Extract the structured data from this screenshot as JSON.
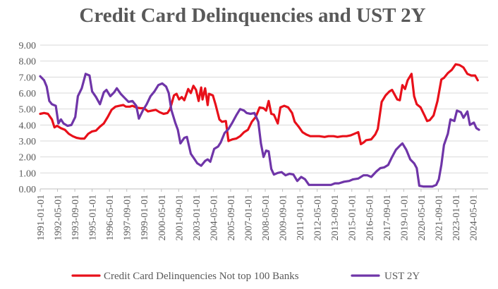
{
  "chart_data": {
    "type": "line",
    "title": "Credit Card Delinquencies and UST 2Y",
    "xlabel": "",
    "ylabel": "",
    "ylim": [
      0,
      9
    ],
    "y_ticks": [
      "0.00",
      "1.00",
      "2.00",
      "3.00",
      "4.00",
      "5.00",
      "6.00",
      "7.00",
      "8.00",
      "9.00"
    ],
    "x_tick_labels": [
      "1991-01-01",
      "1992-05-01",
      "1993-09-01",
      "1995-01-01",
      "1996-05-01",
      "1997-09-01",
      "1999-01-01",
      "2000-05-01",
      "2001-09-01",
      "2003-01-01",
      "2004-05-01",
      "2005-09-01",
      "2007-01-01",
      "2008-05-01",
      "2009-09-01",
      "2011-01-01",
      "2012-05-01",
      "2013-09-01",
      "2015-01-01",
      "2016-05-01",
      "2017-09-01",
      "2019-01-01",
      "2020-05-01",
      "2021-09-01",
      "2023-01-01",
      "2024-05-01"
    ],
    "x_range": [
      1991.0,
      2025.5
    ],
    "grid": "horizontal",
    "legend_position": "bottom",
    "series": [
      {
        "name": "Credit Card Delinquencies Not top 100 Banks",
        "color": "#e8101a",
        "points": [
          [
            1991.0,
            4.7
          ],
          [
            1991.3,
            4.75
          ],
          [
            1991.6,
            4.7
          ],
          [
            1991.9,
            4.35
          ],
          [
            1992.1,
            3.85
          ],
          [
            1992.3,
            3.95
          ],
          [
            1992.6,
            3.8
          ],
          [
            1992.9,
            3.7
          ],
          [
            1993.2,
            3.45
          ],
          [
            1993.5,
            3.3
          ],
          [
            1993.8,
            3.2
          ],
          [
            1994.1,
            3.15
          ],
          [
            1994.4,
            3.15
          ],
          [
            1994.7,
            3.45
          ],
          [
            1995.0,
            3.6
          ],
          [
            1995.3,
            3.65
          ],
          [
            1995.6,
            3.9
          ],
          [
            1995.9,
            4.1
          ],
          [
            1996.2,
            4.5
          ],
          [
            1996.5,
            4.95
          ],
          [
            1996.8,
            5.15
          ],
          [
            1997.1,
            5.2
          ],
          [
            1997.4,
            5.25
          ],
          [
            1997.6,
            5.15
          ],
          [
            1997.9,
            5.15
          ],
          [
            1998.1,
            5.2
          ],
          [
            1998.4,
            5.1
          ],
          [
            1998.7,
            5.05
          ],
          [
            1999.0,
            5.05
          ],
          [
            1999.3,
            4.85
          ],
          [
            1999.6,
            4.9
          ],
          [
            1999.9,
            4.95
          ],
          [
            2000.2,
            4.8
          ],
          [
            2000.5,
            4.7
          ],
          [
            2000.8,
            4.75
          ],
          [
            2001.0,
            5.0
          ],
          [
            2001.3,
            5.85
          ],
          [
            2001.5,
            5.95
          ],
          [
            2001.7,
            5.6
          ],
          [
            2001.9,
            5.75
          ],
          [
            2002.1,
            5.55
          ],
          [
            2002.4,
            6.25
          ],
          [
            2002.6,
            6.0
          ],
          [
            2002.8,
            6.45
          ],
          [
            2003.0,
            6.2
          ],
          [
            2003.2,
            5.5
          ],
          [
            2003.4,
            6.35
          ],
          [
            2003.5,
            5.6
          ],
          [
            2003.7,
            6.3
          ],
          [
            2003.9,
            5.25
          ],
          [
            2004.0,
            5.95
          ],
          [
            2004.3,
            5.85
          ],
          [
            2004.5,
            5.3
          ],
          [
            2004.8,
            4.35
          ],
          [
            2005.0,
            4.2
          ],
          [
            2005.3,
            4.25
          ],
          [
            2005.5,
            3.0
          ],
          [
            2005.8,
            3.1
          ],
          [
            2006.1,
            3.15
          ],
          [
            2006.4,
            3.3
          ],
          [
            2006.7,
            3.55
          ],
          [
            2007.0,
            3.7
          ],
          [
            2007.3,
            4.2
          ],
          [
            2007.6,
            4.5
          ],
          [
            2007.9,
            5.1
          ],
          [
            2008.2,
            5.05
          ],
          [
            2008.4,
            4.9
          ],
          [
            2008.6,
            5.5
          ],
          [
            2008.8,
            4.7
          ],
          [
            2009.0,
            4.65
          ],
          [
            2009.3,
            4.1
          ],
          [
            2009.5,
            5.1
          ],
          [
            2009.8,
            5.2
          ],
          [
            2010.1,
            5.1
          ],
          [
            2010.4,
            4.75
          ],
          [
            2010.6,
            4.2
          ],
          [
            2010.9,
            3.9
          ],
          [
            2011.2,
            3.55
          ],
          [
            2011.5,
            3.4
          ],
          [
            2011.8,
            3.3
          ],
          [
            2012.1,
            3.3
          ],
          [
            2012.5,
            3.3
          ],
          [
            2012.9,
            3.25
          ],
          [
            2013.2,
            3.3
          ],
          [
            2013.6,
            3.3
          ],
          [
            2013.9,
            3.25
          ],
          [
            2014.3,
            3.3
          ],
          [
            2014.6,
            3.3
          ],
          [
            2014.9,
            3.35
          ],
          [
            2015.2,
            3.45
          ],
          [
            2015.5,
            3.55
          ],
          [
            2015.7,
            2.8
          ],
          [
            2015.9,
            2.9
          ],
          [
            2016.1,
            3.05
          ],
          [
            2016.5,
            3.1
          ],
          [
            2016.8,
            3.4
          ],
          [
            2017.0,
            3.75
          ],
          [
            2017.3,
            5.45
          ],
          [
            2017.6,
            5.85
          ],
          [
            2017.9,
            6.1
          ],
          [
            2018.1,
            6.2
          ],
          [
            2018.3,
            5.9
          ],
          [
            2018.5,
            5.6
          ],
          [
            2018.7,
            5.55
          ],
          [
            2018.9,
            6.5
          ],
          [
            2019.1,
            6.25
          ],
          [
            2019.3,
            6.8
          ],
          [
            2019.6,
            7.2
          ],
          [
            2019.8,
            5.8
          ],
          [
            2020.0,
            5.3
          ],
          [
            2020.3,
            5.1
          ],
          [
            2020.6,
            4.6
          ],
          [
            2020.8,
            4.25
          ],
          [
            2021.0,
            4.3
          ],
          [
            2021.3,
            4.6
          ],
          [
            2021.6,
            5.5
          ],
          [
            2021.9,
            6.85
          ],
          [
            2022.1,
            6.95
          ],
          [
            2022.4,
            7.25
          ],
          [
            2022.7,
            7.45
          ],
          [
            2023.0,
            7.8
          ],
          [
            2023.3,
            7.75
          ],
          [
            2023.6,
            7.6
          ],
          [
            2023.9,
            7.2
          ],
          [
            2024.2,
            7.1
          ],
          [
            2024.5,
            7.1
          ],
          [
            2024.7,
            6.8
          ]
        ]
      },
      {
        "name": "UST 2Y",
        "color": "#6f35a8",
        "points": [
          [
            1991.0,
            7.05
          ],
          [
            1991.3,
            6.8
          ],
          [
            1991.5,
            6.4
          ],
          [
            1991.7,
            5.5
          ],
          [
            1991.9,
            5.3
          ],
          [
            1992.2,
            5.2
          ],
          [
            1992.4,
            4.1
          ],
          [
            1992.6,
            4.35
          ],
          [
            1992.8,
            4.1
          ],
          [
            1993.1,
            3.95
          ],
          [
            1993.4,
            4.0
          ],
          [
            1993.7,
            4.5
          ],
          [
            1993.9,
            5.8
          ],
          [
            1994.2,
            6.3
          ],
          [
            1994.5,
            7.2
          ],
          [
            1994.8,
            7.1
          ],
          [
            1995.0,
            6.1
          ],
          [
            1995.3,
            5.75
          ],
          [
            1995.6,
            5.3
          ],
          [
            1995.9,
            6.05
          ],
          [
            1996.1,
            6.2
          ],
          [
            1996.4,
            5.8
          ],
          [
            1996.7,
            6.05
          ],
          [
            1996.9,
            6.3
          ],
          [
            1997.2,
            5.95
          ],
          [
            1997.5,
            5.7
          ],
          [
            1997.8,
            5.45
          ],
          [
            1998.1,
            5.5
          ],
          [
            1998.4,
            5.2
          ],
          [
            1998.6,
            4.4
          ],
          [
            1998.9,
            4.9
          ],
          [
            1999.2,
            5.3
          ],
          [
            1999.5,
            5.8
          ],
          [
            1999.8,
            6.1
          ],
          [
            2000.1,
            6.5
          ],
          [
            2000.4,
            6.6
          ],
          [
            2000.7,
            6.4
          ],
          [
            2000.9,
            6.0
          ],
          [
            2001.1,
            4.95
          ],
          [
            2001.4,
            4.15
          ],
          [
            2001.6,
            3.7
          ],
          [
            2001.8,
            2.85
          ],
          [
            2002.1,
            3.2
          ],
          [
            2002.3,
            3.25
          ],
          [
            2002.6,
            2.2
          ],
          [
            2002.9,
            1.85
          ],
          [
            2003.1,
            1.6
          ],
          [
            2003.4,
            1.45
          ],
          [
            2003.7,
            1.75
          ],
          [
            2003.9,
            1.85
          ],
          [
            2004.1,
            1.7
          ],
          [
            2004.4,
            2.5
          ],
          [
            2004.7,
            2.65
          ],
          [
            2004.9,
            2.9
          ],
          [
            2005.2,
            3.5
          ],
          [
            2005.5,
            3.75
          ],
          [
            2005.8,
            4.15
          ],
          [
            2006.1,
            4.6
          ],
          [
            2006.4,
            5.0
          ],
          [
            2006.7,
            4.9
          ],
          [
            2006.9,
            4.75
          ],
          [
            2007.2,
            4.7
          ],
          [
            2007.5,
            4.75
          ],
          [
            2007.8,
            4.2
          ],
          [
            2008.0,
            2.85
          ],
          [
            2008.2,
            2.0
          ],
          [
            2008.4,
            2.4
          ],
          [
            2008.6,
            2.35
          ],
          [
            2008.8,
            1.25
          ],
          [
            2009.0,
            0.9
          ],
          [
            2009.3,
            1.0
          ],
          [
            2009.6,
            1.05
          ],
          [
            2009.9,
            0.85
          ],
          [
            2010.2,
            0.95
          ],
          [
            2010.5,
            0.9
          ],
          [
            2010.8,
            0.5
          ],
          [
            2011.1,
            0.75
          ],
          [
            2011.4,
            0.6
          ],
          [
            2011.7,
            0.25
          ],
          [
            2012.0,
            0.25
          ],
          [
            2012.5,
            0.25
          ],
          [
            2013.0,
            0.25
          ],
          [
            2013.4,
            0.25
          ],
          [
            2013.7,
            0.35
          ],
          [
            2014.0,
            0.35
          ],
          [
            2014.4,
            0.45
          ],
          [
            2014.8,
            0.5
          ],
          [
            2015.1,
            0.6
          ],
          [
            2015.5,
            0.65
          ],
          [
            2015.9,
            0.85
          ],
          [
            2016.2,
            0.85
          ],
          [
            2016.5,
            0.75
          ],
          [
            2016.9,
            1.1
          ],
          [
            2017.2,
            1.3
          ],
          [
            2017.5,
            1.35
          ],
          [
            2017.8,
            1.5
          ],
          [
            2018.1,
            2.0
          ],
          [
            2018.4,
            2.45
          ],
          [
            2018.7,
            2.7
          ],
          [
            2018.9,
            2.85
          ],
          [
            2019.2,
            2.45
          ],
          [
            2019.5,
            1.85
          ],
          [
            2019.8,
            1.6
          ],
          [
            2020.0,
            1.3
          ],
          [
            2020.2,
            0.2
          ],
          [
            2020.5,
            0.15
          ],
          [
            2020.9,
            0.15
          ],
          [
            2021.2,
            0.15
          ],
          [
            2021.5,
            0.25
          ],
          [
            2021.7,
            0.6
          ],
          [
            2021.9,
            1.5
          ],
          [
            2022.1,
            2.75
          ],
          [
            2022.4,
            3.45
          ],
          [
            2022.6,
            4.35
          ],
          [
            2022.9,
            4.25
          ],
          [
            2023.1,
            4.9
          ],
          [
            2023.4,
            4.8
          ],
          [
            2023.6,
            4.45
          ],
          [
            2023.9,
            4.85
          ],
          [
            2024.1,
            4.0
          ],
          [
            2024.4,
            4.15
          ],
          [
            2024.6,
            3.8
          ],
          [
            2024.8,
            3.7
          ]
        ]
      }
    ]
  }
}
